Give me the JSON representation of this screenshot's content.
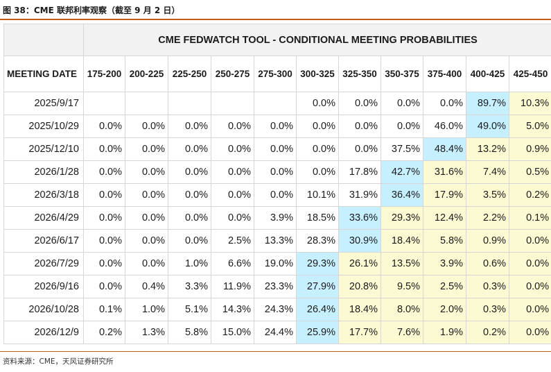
{
  "figure": {
    "title": "图 38：CME 联邦利率观察（截至 9 月 2 日）",
    "source": "资料来源：CME，天风证券研究所"
  },
  "table": {
    "banner": "CME FEDWATCH TOOL - CONDITIONAL MEETING PROBABILITIES",
    "date_header": "MEETING DATE",
    "ranges": [
      "175-200",
      "200-225",
      "225-250",
      "250-275",
      "275-300",
      "300-325",
      "325-350",
      "350-375",
      "375-400",
      "400-425",
      "425-450"
    ],
    "rows": [
      {
        "date": "2025/9/17",
        "cells": [
          "",
          "",
          "",
          "",
          "",
          "0.0%",
          "0.0%",
          "0.0%",
          "0.0%",
          "89.7%",
          "10.3%"
        ]
      },
      {
        "date": "2025/10/29",
        "cells": [
          "0.0%",
          "0.0%",
          "0.0%",
          "0.0%",
          "0.0%",
          "0.0%",
          "0.0%",
          "0.0%",
          "46.0%",
          "49.0%",
          "5.0%"
        ]
      },
      {
        "date": "2025/12/10",
        "cells": [
          "0.0%",
          "0.0%",
          "0.0%",
          "0.0%",
          "0.0%",
          "0.0%",
          "0.0%",
          "37.5%",
          "48.4%",
          "13.2%",
          "0.9%"
        ]
      },
      {
        "date": "2026/1/28",
        "cells": [
          "0.0%",
          "0.0%",
          "0.0%",
          "0.0%",
          "0.0%",
          "0.0%",
          "17.8%",
          "42.7%",
          "31.6%",
          "7.4%",
          "0.5%"
        ]
      },
      {
        "date": "2026/3/18",
        "cells": [
          "0.0%",
          "0.0%",
          "0.0%",
          "0.0%",
          "0.0%",
          "10.1%",
          "31.9%",
          "36.4%",
          "17.9%",
          "3.5%",
          "0.2%"
        ]
      },
      {
        "date": "2026/4/29",
        "cells": [
          "0.0%",
          "0.0%",
          "0.0%",
          "0.0%",
          "3.9%",
          "18.5%",
          "33.6%",
          "29.3%",
          "12.4%",
          "2.2%",
          "0.1%"
        ]
      },
      {
        "date": "2026/6/17",
        "cells": [
          "0.0%",
          "0.0%",
          "0.0%",
          "2.5%",
          "13.3%",
          "28.3%",
          "30.9%",
          "18.4%",
          "5.8%",
          "0.9%",
          "0.0%"
        ]
      },
      {
        "date": "2026/7/29",
        "cells": [
          "0.0%",
          "0.0%",
          "1.0%",
          "6.6%",
          "19.0%",
          "29.3%",
          "26.1%",
          "13.5%",
          "3.9%",
          "0.6%",
          "0.0%"
        ]
      },
      {
        "date": "2026/9/16",
        "cells": [
          "0.0%",
          "0.4%",
          "3.3%",
          "11.9%",
          "23.3%",
          "27.9%",
          "20.8%",
          "9.5%",
          "2.5%",
          "0.3%",
          "0.0%"
        ]
      },
      {
        "date": "2026/10/28",
        "cells": [
          "0.1%",
          "1.0%",
          "5.1%",
          "14.3%",
          "24.3%",
          "26.4%",
          "18.4%",
          "8.0%",
          "2.0%",
          "0.3%",
          "0.0%"
        ]
      },
      {
        "date": "2026/12/9",
        "cells": [
          "0.2%",
          "1.3%",
          "5.8%",
          "15.0%",
          "24.4%",
          "25.9%",
          "17.7%",
          "7.6%",
          "1.9%",
          "0.2%",
          "0.0%"
        ]
      }
    ]
  },
  "colors": {
    "highlight_max": "#c6efff",
    "highlight_current": "#fcfad2",
    "rule": "#c55a11"
  }
}
